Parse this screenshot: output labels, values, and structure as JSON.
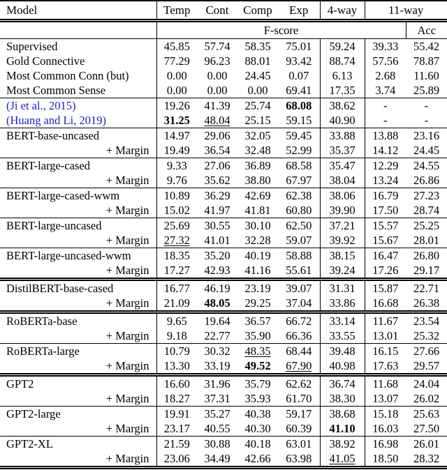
{
  "header": {
    "model_label": "Model",
    "cols": [
      "Temp",
      "Cont",
      "Comp",
      "Exp",
      "4-way",
      "11-way"
    ],
    "fscore_label": "F-score",
    "acc_label": "Acc"
  },
  "colors": {
    "citation_blue": "#1f1fc8",
    "text": "#000000",
    "background": "#ffffff"
  },
  "rows": [
    {
      "label": "Supervised",
      "margin": false,
      "citation": false,
      "rule": "none",
      "values": [
        "45.85",
        "57.74",
        "58.35",
        "75.01",
        "59.24",
        "39.33",
        "55.42"
      ],
      "bold": [],
      "underline": []
    },
    {
      "label": "Gold Connective",
      "margin": false,
      "citation": false,
      "rule": "none",
      "values": [
        "77.29",
        "96.23",
        "88.01",
        "93.42",
        "88.74",
        "57.56",
        "78.87"
      ],
      "bold": [],
      "underline": []
    },
    {
      "label": "Most Common Conn (but)",
      "margin": false,
      "citation": false,
      "rule": "none",
      "values": [
        "0.00",
        "0.00",
        "24.45",
        "0.07",
        "6.13",
        "2.68",
        "11.60"
      ],
      "bold": [],
      "underline": []
    },
    {
      "label": "Most Common Sense",
      "margin": false,
      "citation": false,
      "rule": "none",
      "values": [
        "0.00",
        "0.00",
        "0.00",
        "69.41",
        "17.35",
        "3.74",
        "25.89"
      ],
      "bold": [],
      "underline": []
    },
    {
      "label": "(Ji et al., 2015)",
      "margin": false,
      "citation": true,
      "rule": "single",
      "values": [
        "19.26",
        "41.39",
        "25.74",
        "68.08",
        "38.62",
        "-",
        "-"
      ],
      "bold": [
        3
      ],
      "underline": []
    },
    {
      "label": "(Huang and Li, 2019)",
      "margin": false,
      "citation": true,
      "rule": "none",
      "values": [
        "31.25",
        "48.04",
        "25.15",
        "59.15",
        "40.90",
        "-",
        "-"
      ],
      "bold": [
        0
      ],
      "underline": [
        1
      ]
    },
    {
      "label": "BERT-base-uncased",
      "margin": false,
      "citation": false,
      "rule": "single",
      "values": [
        "14.97",
        "29.06",
        "32.05",
        "59.45",
        "33.88",
        "13.88",
        "23.16"
      ],
      "bold": [],
      "underline": []
    },
    {
      "label": "+ Margin",
      "margin": true,
      "citation": false,
      "rule": "none",
      "values": [
        "19.49",
        "36.54",
        "32.48",
        "52.99",
        "35.37",
        "14.12",
        "24.45"
      ],
      "bold": [],
      "underline": []
    },
    {
      "label": "BERT-large-cased",
      "margin": false,
      "citation": false,
      "rule": "single",
      "values": [
        "9.33",
        "27.06",
        "36.89",
        "68.58",
        "35.47",
        "12.29",
        "24.55"
      ],
      "bold": [],
      "underline": []
    },
    {
      "label": "+ Margin",
      "margin": true,
      "citation": false,
      "rule": "none",
      "values": [
        "9.76",
        "35.62",
        "38.80",
        "67.97",
        "38.04",
        "13.24",
        "26.86"
      ],
      "bold": [],
      "underline": []
    },
    {
      "label": "BERT-large-cased-wwm",
      "margin": false,
      "citation": false,
      "rule": "single",
      "values": [
        "10.89",
        "36.29",
        "42.69",
        "62.38",
        "38.06",
        "16.79",
        "27.23"
      ],
      "bold": [],
      "underline": []
    },
    {
      "label": "+ Margin",
      "margin": true,
      "citation": false,
      "rule": "none",
      "values": [
        "15.02",
        "41.97",
        "41.81",
        "60.80",
        "39.90",
        "17.50",
        "28.74"
      ],
      "bold": [],
      "underline": []
    },
    {
      "label": "BERT-large-uncased",
      "margin": false,
      "citation": false,
      "rule": "single",
      "values": [
        "25.69",
        "30.55",
        "30.10",
        "62.50",
        "37.21",
        "15.57",
        "25.25"
      ],
      "bold": [],
      "underline": []
    },
    {
      "label": "+ Margin",
      "margin": true,
      "citation": false,
      "rule": "none",
      "values": [
        "27.32",
        "41.01",
        "32.28",
        "59.07",
        "39.92",
        "15.67",
        "28.01"
      ],
      "bold": [],
      "underline": [
        0
      ]
    },
    {
      "label": "BERT-large-uncased-wwm",
      "margin": false,
      "citation": false,
      "rule": "single",
      "values": [
        "18.35",
        "35.20",
        "40.19",
        "58.88",
        "38.15",
        "16.47",
        "26.80"
      ],
      "bold": [],
      "underline": []
    },
    {
      "label": "+ Margin",
      "margin": true,
      "citation": false,
      "rule": "none",
      "values": [
        "17.27",
        "42.93",
        "41.16",
        "55.61",
        "39.24",
        "17.26",
        "29.17"
      ],
      "bold": [],
      "underline": []
    },
    {
      "label": "DistilBERT-base-cased",
      "margin": false,
      "citation": false,
      "rule": "double",
      "values": [
        "16.77",
        "46.19",
        "23.19",
        "39.07",
        "31.31",
        "15.87",
        "22.71"
      ],
      "bold": [],
      "underline": []
    },
    {
      "label": "+ Margin",
      "margin": true,
      "citation": false,
      "rule": "none",
      "values": [
        "21.09",
        "48.05",
        "29.25",
        "37.04",
        "33.86",
        "16.68",
        "26.38"
      ],
      "bold": [
        1
      ],
      "underline": []
    },
    {
      "label": "RoBERTa-base",
      "margin": false,
      "citation": false,
      "rule": "double",
      "values": [
        "9.65",
        "19.64",
        "36.57",
        "66.72",
        "33.14",
        "11.67",
        "23.54"
      ],
      "bold": [],
      "underline": []
    },
    {
      "label": "+ Margin",
      "margin": true,
      "citation": false,
      "rule": "none",
      "values": [
        "9.18",
        "22.77",
        "35.90",
        "66.36",
        "33.55",
        "13.01",
        "25.32"
      ],
      "bold": [],
      "underline": []
    },
    {
      "label": "RoBERTa-large",
      "margin": false,
      "citation": false,
      "rule": "single",
      "values": [
        "10.79",
        "30.32",
        "48.35",
        "68.44",
        "39.48",
        "16.15",
        "27.66"
      ],
      "bold": [],
      "underline": [
        2
      ]
    },
    {
      "label": "+ Margin",
      "margin": true,
      "citation": false,
      "rule": "none",
      "values": [
        "13.30",
        "33.19",
        "49.52",
        "67.90",
        "40.98",
        "17.63",
        "29.57"
      ],
      "bold": [
        2
      ],
      "underline": [
        3
      ]
    },
    {
      "label": "GPT2",
      "margin": false,
      "citation": false,
      "rule": "double",
      "values": [
        "16.60",
        "31.96",
        "35.79",
        "62.62",
        "36.74",
        "11.68",
        "24.04"
      ],
      "bold": [],
      "underline": []
    },
    {
      "label": "+ Margin",
      "margin": true,
      "citation": false,
      "rule": "none",
      "values": [
        "18.27",
        "37.31",
        "35.93",
        "61.70",
        "38.30",
        "13.07",
        "26.02"
      ],
      "bold": [],
      "underline": []
    },
    {
      "label": "GPT2-large",
      "margin": false,
      "citation": false,
      "rule": "single",
      "values": [
        "19.91",
        "35.27",
        "40.38",
        "59.17",
        "38.68",
        "15.18",
        "25.63"
      ],
      "bold": [],
      "underline": []
    },
    {
      "label": "+ Margin",
      "margin": true,
      "citation": false,
      "rule": "none",
      "values": [
        "23.17",
        "40.55",
        "40.30",
        "60.39",
        "41.10",
        "16.03",
        "27.50"
      ],
      "bold": [
        4
      ],
      "underline": []
    },
    {
      "label": "GPT2-XL",
      "margin": false,
      "citation": false,
      "rule": "single",
      "values": [
        "21.59",
        "30.88",
        "40.18",
        "63.01",
        "38.92",
        "16.98",
        "26.01"
      ],
      "bold": [],
      "underline": []
    },
    {
      "label": "+ Margin",
      "margin": true,
      "citation": false,
      "rule": "none",
      "values": [
        "23.06",
        "34.49",
        "42.66",
        "63.98",
        "41.05",
        "18.50",
        "28.32"
      ],
      "bold": [],
      "underline": [
        4
      ]
    }
  ]
}
